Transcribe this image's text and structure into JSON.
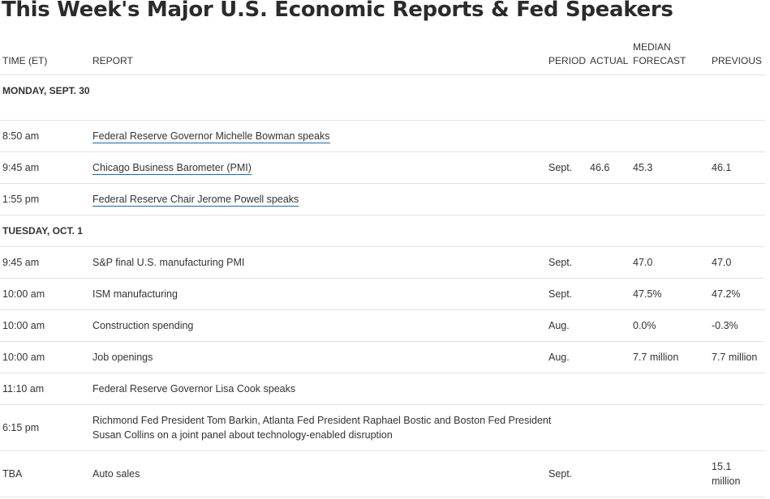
{
  "title": "This Week's Major U.S. Economic Reports & Fed Speakers",
  "columns": {
    "time": "TIME (ET)",
    "report": "REPORT",
    "period": "PERIOD",
    "actual": "ACTUAL",
    "forecast_line1": "MEDIAN",
    "forecast_line2": "FORECAST",
    "previous": "PREVIOUS"
  },
  "days": [
    {
      "label": "MONDAY, SEPT. 30",
      "rows": [
        {
          "time": "8:50 am",
          "report": "Federal Reserve Governor Michelle Bowman speaks",
          "link": true,
          "period": "",
          "actual": "",
          "forecast": "",
          "previous": ""
        },
        {
          "time": "9:45 am",
          "report": "Chicago Business Barometer (PMI)",
          "link": true,
          "period": "Sept.",
          "actual": "46.6",
          "forecast": "45.3",
          "previous": "46.1"
        },
        {
          "time": "1:55 pm",
          "report": "Federal Reserve Chair Jerome Powell speaks",
          "link": true,
          "period": "",
          "actual": "",
          "forecast": "",
          "previous": ""
        }
      ]
    },
    {
      "label": "TUESDAY, OCT. 1",
      "rows": [
        {
          "time": "9:45 am",
          "report": "S&P final U.S. manufacturing PMI",
          "link": false,
          "period": "Sept.",
          "actual": "",
          "forecast": "47.0",
          "previous": "47.0"
        },
        {
          "time": "10:00 am",
          "report": "ISM manufacturing",
          "link": false,
          "period": "Sept.",
          "actual": "",
          "forecast": "47.5%",
          "previous": "47.2%"
        },
        {
          "time": "10:00 am",
          "report": "Construction spending",
          "link": false,
          "period": "Aug.",
          "actual": "",
          "forecast": "0.0%",
          "previous": "-0.3%"
        },
        {
          "time": "10:00 am",
          "report": "Job openings",
          "link": false,
          "period": "Aug.",
          "actual": "",
          "forecast": "7.7 million",
          "previous": "7.7 million"
        },
        {
          "time": "11:10 am",
          "report": "Federal Reserve Governor Lisa Cook speaks",
          "link": false,
          "period": "",
          "actual": "",
          "forecast": "",
          "previous": ""
        },
        {
          "time": "6:15 pm",
          "report": "Richmond Fed President Tom Barkin, Atlanta Fed President Raphael Bostic and Boston Fed President Susan Collins on a joint panel about technology-enabled disruption",
          "link": false,
          "period": "",
          "actual": "",
          "forecast": "",
          "previous": ""
        },
        {
          "time": "TBA",
          "report": "Auto sales",
          "link": false,
          "period": "Sept.",
          "actual": "",
          "forecast": "",
          "previous": "15.1 million"
        }
      ]
    }
  ]
}
